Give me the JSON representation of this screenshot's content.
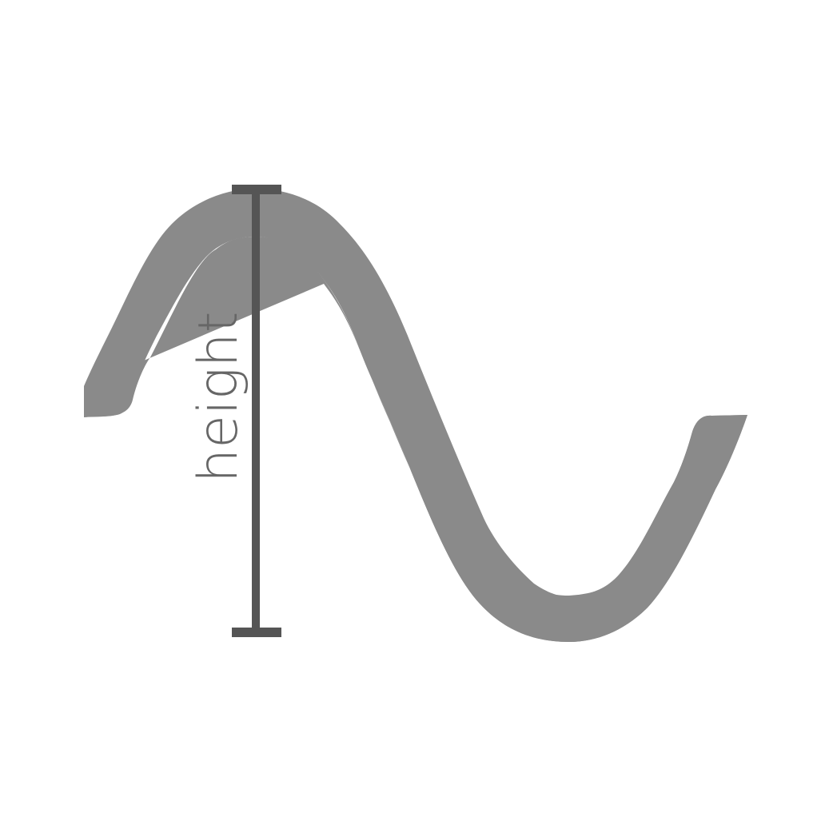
{
  "diagram": {
    "label": "height",
    "colors": {
      "wave": "#8a8a8a",
      "measure": "#555555",
      "label": "#666666",
      "background": "#ffffff"
    },
    "icons": {
      "wave": "sine-wave-shape",
      "measure": "i-beam-height-marker"
    }
  }
}
